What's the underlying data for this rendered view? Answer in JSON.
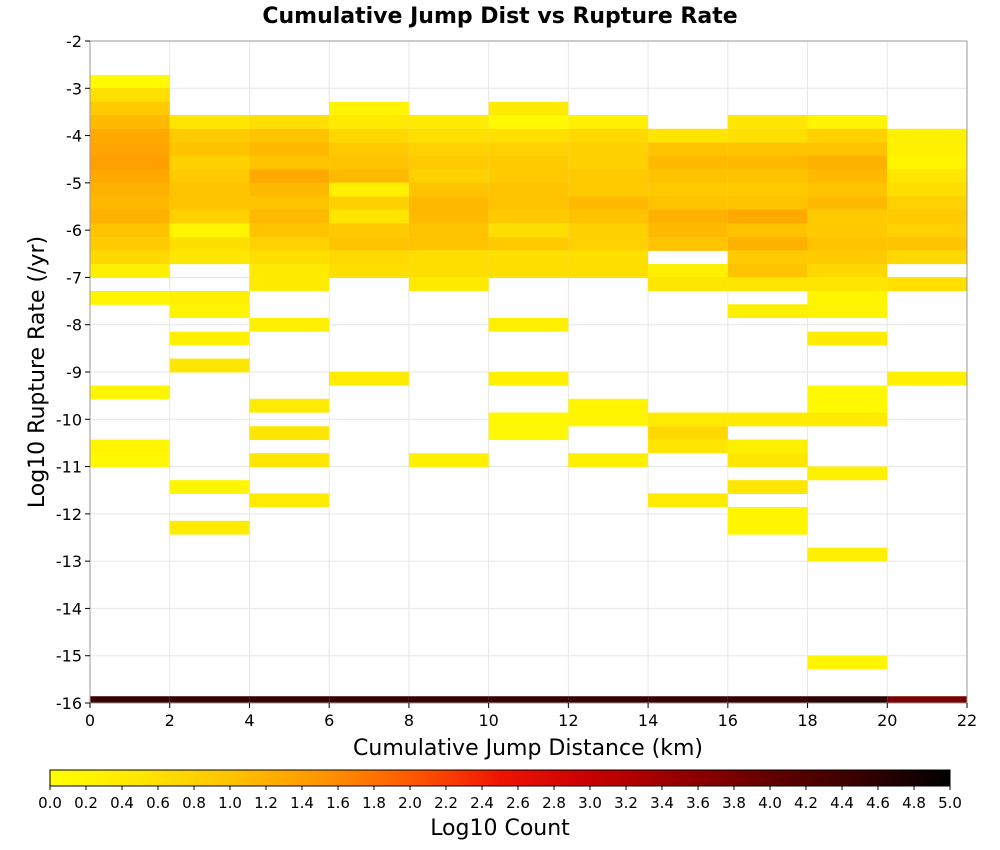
{
  "chart_data": {
    "type": "heatmap",
    "title": "Cumulative Jump Dist vs Rupture Rate",
    "xlabel": "Cumulative Jump Distance (km)",
    "ylabel": "Log10 Rupture Rate (/yr)",
    "colorbar_label": "Log10 Count",
    "xlim": [
      0,
      22
    ],
    "ylim": [
      -16,
      -2
    ],
    "x_ticks": [
      "0",
      "2",
      "4",
      "6",
      "8",
      "10",
      "12",
      "14",
      "16",
      "18",
      "20",
      "22"
    ],
    "y_ticks": [
      "-2",
      "-3",
      "-4",
      "-5",
      "-6",
      "-7",
      "-8",
      "-9",
      "-10",
      "-11",
      "-12",
      "-13",
      "-14",
      "-15",
      "-16"
    ],
    "colorbar_range": [
      0,
      5
    ],
    "colorbar_ticks": [
      "0.0",
      "0.2",
      "0.4",
      "0.6",
      "0.8",
      "1.0",
      "1.2",
      "1.4",
      "1.6",
      "1.8",
      "2.0",
      "2.2",
      "2.4",
      "2.6",
      "2.8",
      "3.0",
      "3.2",
      "3.4",
      "3.6",
      "3.8",
      "4.0",
      "4.2",
      "4.4",
      "4.6",
      "4.8",
      "5.0"
    ],
    "grid": true,
    "bin_width_x": 2,
    "bin_height_y": 0.286,
    "columns": [
      {
        "x": 1,
        "cells": [
          [
            -2.86,
            0.1
          ],
          [
            -3.14,
            0.6
          ],
          [
            -3.43,
            0.9
          ],
          [
            -3.71,
            1.1
          ],
          [
            -4.0,
            1.3
          ],
          [
            -4.29,
            1.35
          ],
          [
            -4.57,
            1.4
          ],
          [
            -4.86,
            1.3
          ],
          [
            -5.14,
            1.2
          ],
          [
            -5.43,
            1.1
          ],
          [
            -5.71,
            1.2
          ],
          [
            -6.0,
            1.0
          ],
          [
            -6.29,
            0.9
          ],
          [
            -6.57,
            0.7
          ],
          [
            -6.86,
            0.3
          ],
          [
            -7.43,
            0.2
          ],
          [
            -9.43,
            0.2
          ],
          [
            -10.57,
            0.2
          ],
          [
            -10.86,
            0.15
          ],
          [
            -16.0,
            4.5
          ]
        ]
      },
      {
        "x": 3,
        "cells": [
          [
            -3.71,
            0.5
          ],
          [
            -4.0,
            0.9
          ],
          [
            -4.29,
            1.0
          ],
          [
            -4.57,
            0.8
          ],
          [
            -4.86,
            0.9
          ],
          [
            -5.14,
            1.0
          ],
          [
            -5.43,
            1.0
          ],
          [
            -5.71,
            0.8
          ],
          [
            -6.0,
            0.2
          ],
          [
            -6.29,
            0.6
          ],
          [
            -6.57,
            0.5
          ],
          [
            -7.43,
            0.3
          ],
          [
            -7.71,
            0.2
          ],
          [
            -8.29,
            0.3
          ],
          [
            -8.86,
            0.5
          ],
          [
            -11.43,
            0.2
          ],
          [
            -12.29,
            0.4
          ],
          [
            -16.0,
            4.5
          ]
        ]
      },
      {
        "x": 5,
        "cells": [
          [
            -3.71,
            0.6
          ],
          [
            -4.0,
            1.0
          ],
          [
            -4.29,
            1.1
          ],
          [
            -4.57,
            1.0
          ],
          [
            -4.86,
            1.3
          ],
          [
            -5.14,
            1.1
          ],
          [
            -5.43,
            1.0
          ],
          [
            -5.71,
            1.1
          ],
          [
            -6.0,
            1.0
          ],
          [
            -6.29,
            0.8
          ],
          [
            -6.57,
            0.6
          ],
          [
            -6.86,
            0.4
          ],
          [
            -7.14,
            0.4
          ],
          [
            -8.0,
            0.3
          ],
          [
            -9.71,
            0.4
          ],
          [
            -10.29,
            0.5
          ],
          [
            -10.86,
            0.5
          ],
          [
            -11.71,
            0.4
          ],
          [
            -16.0,
            4.5
          ]
        ]
      },
      {
        "x": 7,
        "cells": [
          [
            -3.43,
            0.2
          ],
          [
            -3.71,
            0.4
          ],
          [
            -4.0,
            0.7
          ],
          [
            -4.29,
            0.9
          ],
          [
            -4.57,
            1.0
          ],
          [
            -4.86,
            1.1
          ],
          [
            -5.14,
            0.3
          ],
          [
            -5.43,
            0.8
          ],
          [
            -5.71,
            0.5
          ],
          [
            -6.0,
            0.9
          ],
          [
            -6.29,
            1.0
          ],
          [
            -6.57,
            0.7
          ],
          [
            -6.86,
            0.6
          ],
          [
            -9.14,
            0.4
          ],
          [
            -16.0,
            4.5
          ]
        ]
      },
      {
        "x": 9,
        "cells": [
          [
            -3.71,
            0.4
          ],
          [
            -4.0,
            0.6
          ],
          [
            -4.29,
            0.8
          ],
          [
            -4.57,
            0.9
          ],
          [
            -4.86,
            0.8
          ],
          [
            -5.14,
            1.0
          ],
          [
            -5.43,
            1.1
          ],
          [
            -5.71,
            1.1
          ],
          [
            -6.0,
            1.0
          ],
          [
            -6.29,
            1.0
          ],
          [
            -6.57,
            0.6
          ],
          [
            -6.86,
            0.6
          ],
          [
            -7.14,
            0.4
          ],
          [
            -10.86,
            0.3
          ],
          [
            -16.0,
            4.5
          ]
        ]
      },
      {
        "x": 11,
        "cells": [
          [
            -3.43,
            0.4
          ],
          [
            -3.71,
            0.15
          ],
          [
            -4.0,
            0.6
          ],
          [
            -4.29,
            0.8
          ],
          [
            -4.57,
            0.9
          ],
          [
            -4.86,
            0.9
          ],
          [
            -5.14,
            1.0
          ],
          [
            -5.43,
            1.0
          ],
          [
            -5.71,
            0.9
          ],
          [
            -6.0,
            0.6
          ],
          [
            -6.29,
            0.9
          ],
          [
            -6.57,
            0.6
          ],
          [
            -6.86,
            0.6
          ],
          [
            -8.0,
            0.3
          ],
          [
            -9.14,
            0.3
          ],
          [
            -10.0,
            0.15
          ],
          [
            -10.29,
            0.15
          ],
          [
            -16.0,
            4.5
          ]
        ]
      },
      {
        "x": 13,
        "cells": [
          [
            -3.71,
            0.3
          ],
          [
            -4.0,
            0.7
          ],
          [
            -4.29,
            0.8
          ],
          [
            -4.57,
            0.8
          ],
          [
            -4.86,
            0.9
          ],
          [
            -5.14,
            0.9
          ],
          [
            -5.43,
            1.1
          ],
          [
            -5.71,
            1.0
          ],
          [
            -6.0,
            0.8
          ],
          [
            -6.29,
            0.8
          ],
          [
            -6.57,
            0.6
          ],
          [
            -6.86,
            0.6
          ],
          [
            -9.71,
            0.2
          ],
          [
            -10.0,
            0.2
          ],
          [
            -10.86,
            0.3
          ],
          [
            -16.0,
            4.5
          ]
        ]
      },
      {
        "x": 15,
        "cells": [
          [
            -4.0,
            0.5
          ],
          [
            -4.29,
            1.0
          ],
          [
            -4.57,
            1.1
          ],
          [
            -4.86,
            1.0
          ],
          [
            -5.14,
            0.9
          ],
          [
            -5.43,
            1.0
          ],
          [
            -5.71,
            1.2
          ],
          [
            -6.0,
            1.1
          ],
          [
            -6.29,
            1.0
          ],
          [
            -6.86,
            0.3
          ],
          [
            -7.14,
            0.5
          ],
          [
            -10.0,
            0.4
          ],
          [
            -10.29,
            0.7
          ],
          [
            -10.57,
            0.5
          ],
          [
            -11.71,
            0.4
          ],
          [
            -16.0,
            4.5
          ]
        ]
      },
      {
        "x": 17,
        "cells": [
          [
            -3.71,
            0.5
          ],
          [
            -4.0,
            0.6
          ],
          [
            -4.29,
            1.0
          ],
          [
            -4.57,
            1.1
          ],
          [
            -4.86,
            1.0
          ],
          [
            -5.14,
            0.9
          ],
          [
            -5.43,
            1.0
          ],
          [
            -5.71,
            1.3
          ],
          [
            -6.0,
            1.0
          ],
          [
            -6.29,
            1.2
          ],
          [
            -6.57,
            0.9
          ],
          [
            -6.86,
            1.0
          ],
          [
            -7.14,
            0.5
          ],
          [
            -7.71,
            0.3
          ],
          [
            -10.0,
            0.4
          ],
          [
            -10.57,
            0.3
          ],
          [
            -10.86,
            0.5
          ],
          [
            -11.43,
            0.5
          ],
          [
            -12.0,
            0.2
          ],
          [
            -12.29,
            0.2
          ],
          [
            -16.0,
            4.5
          ]
        ]
      },
      {
        "x": 19,
        "cells": [
          [
            -3.71,
            0.2
          ],
          [
            -4.0,
            0.8
          ],
          [
            -4.29,
            1.0
          ],
          [
            -4.57,
            1.2
          ],
          [
            -4.86,
            1.1
          ],
          [
            -5.14,
            1.0
          ],
          [
            -5.43,
            1.1
          ],
          [
            -5.71,
            0.9
          ],
          [
            -6.0,
            0.9
          ],
          [
            -6.29,
            1.0
          ],
          [
            -6.57,
            0.9
          ],
          [
            -6.86,
            0.7
          ],
          [
            -7.14,
            0.5
          ],
          [
            -7.43,
            0.2
          ],
          [
            -7.71,
            0.2
          ],
          [
            -8.29,
            0.4
          ],
          [
            -9.43,
            0.15
          ],
          [
            -9.71,
            0.15
          ],
          [
            -10.0,
            0.4
          ],
          [
            -11.14,
            0.3
          ],
          [
            -12.86,
            0.3
          ],
          [
            -15.14,
            0.2
          ],
          [
            -16.0,
            4.6
          ]
        ]
      },
      {
        "x": 21,
        "cells": [
          [
            -4.0,
            0.3
          ],
          [
            -4.29,
            0.3
          ],
          [
            -4.57,
            0.2
          ],
          [
            -4.86,
            0.5
          ],
          [
            -5.14,
            0.6
          ],
          [
            -5.43,
            0.8
          ],
          [
            -5.71,
            0.9
          ],
          [
            -6.0,
            0.8
          ],
          [
            -6.29,
            1.0
          ],
          [
            -6.57,
            0.7
          ],
          [
            -7.14,
            0.6
          ],
          [
            -9.14,
            0.3
          ],
          [
            -16.0,
            3.8
          ]
        ]
      }
    ]
  }
}
